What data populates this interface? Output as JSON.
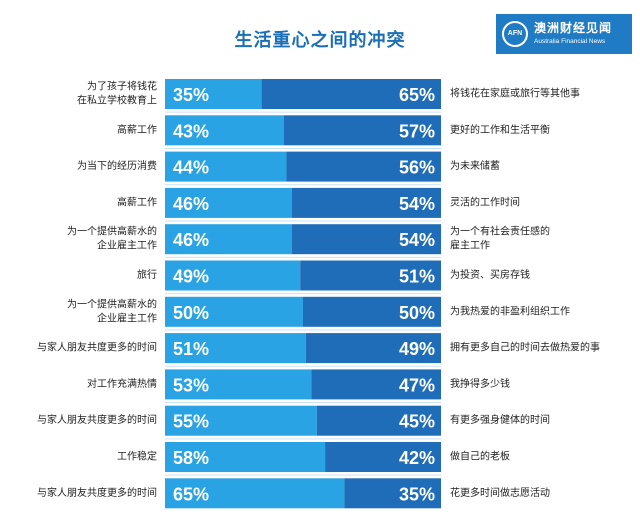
{
  "title": "生活重心之间的冲突",
  "logo": {
    "icon_text": "AFN",
    "name_cn": "澳洲财经见闻",
    "name_en": "Australia Financial News"
  },
  "colors": {
    "left_bar": "#29a3e3",
    "right_bar": "#1f6db8",
    "title": "#1a6fb6",
    "separator": "#c9e2f3"
  },
  "chart_data": {
    "type": "bar",
    "stacked": true,
    "orientation": "horizontal",
    "xlim": [
      0,
      100
    ],
    "categories": [
      [
        "为了孩子将钱花",
        "在私立学校教育上"
      ],
      [
        "高薪工作"
      ],
      [
        "为当下的经历消费"
      ],
      [
        "高薪工作"
      ],
      [
        "为一个提供高薪水的",
        "企业雇主工作"
      ],
      [
        "旅行"
      ],
      [
        "为一个提供高薪水的",
        "企业雇主工作"
      ],
      [
        "与家人朋友共度更多的时间"
      ],
      [
        "对工作充满热情"
      ],
      [
        "与家人朋友共度更多的时间"
      ],
      [
        "工作稳定"
      ],
      [
        "与家人朋友共度更多的时间"
      ]
    ],
    "alternatives": [
      [
        "将钱花在家庭或旅行等其他事"
      ],
      [
        "更好的工作和生活平衡"
      ],
      [
        "为未来储蓄"
      ],
      [
        "灵活的工作时间"
      ],
      [
        "为一个有社会责任感的",
        "雇主工作"
      ],
      [
        "为投资、买房存钱"
      ],
      [
        "为我热爱的非盈利组织工作"
      ],
      [
        "拥有更多自己的时间去做热爱的事"
      ],
      [
        "我挣得多少钱"
      ],
      [
        "有更多强身健体的时间"
      ],
      [
        "做自己的老板"
      ],
      [
        "花更多时间做志愿活动"
      ]
    ],
    "series": [
      {
        "values": [
          35,
          43,
          44,
          46,
          46,
          49,
          50,
          51,
          53,
          55,
          58,
          65
        ]
      },
      {
        "values": [
          65,
          57,
          56,
          54,
          54,
          51,
          50,
          49,
          47,
          45,
          42,
          35
        ]
      }
    ],
    "value_suffix": "%"
  }
}
